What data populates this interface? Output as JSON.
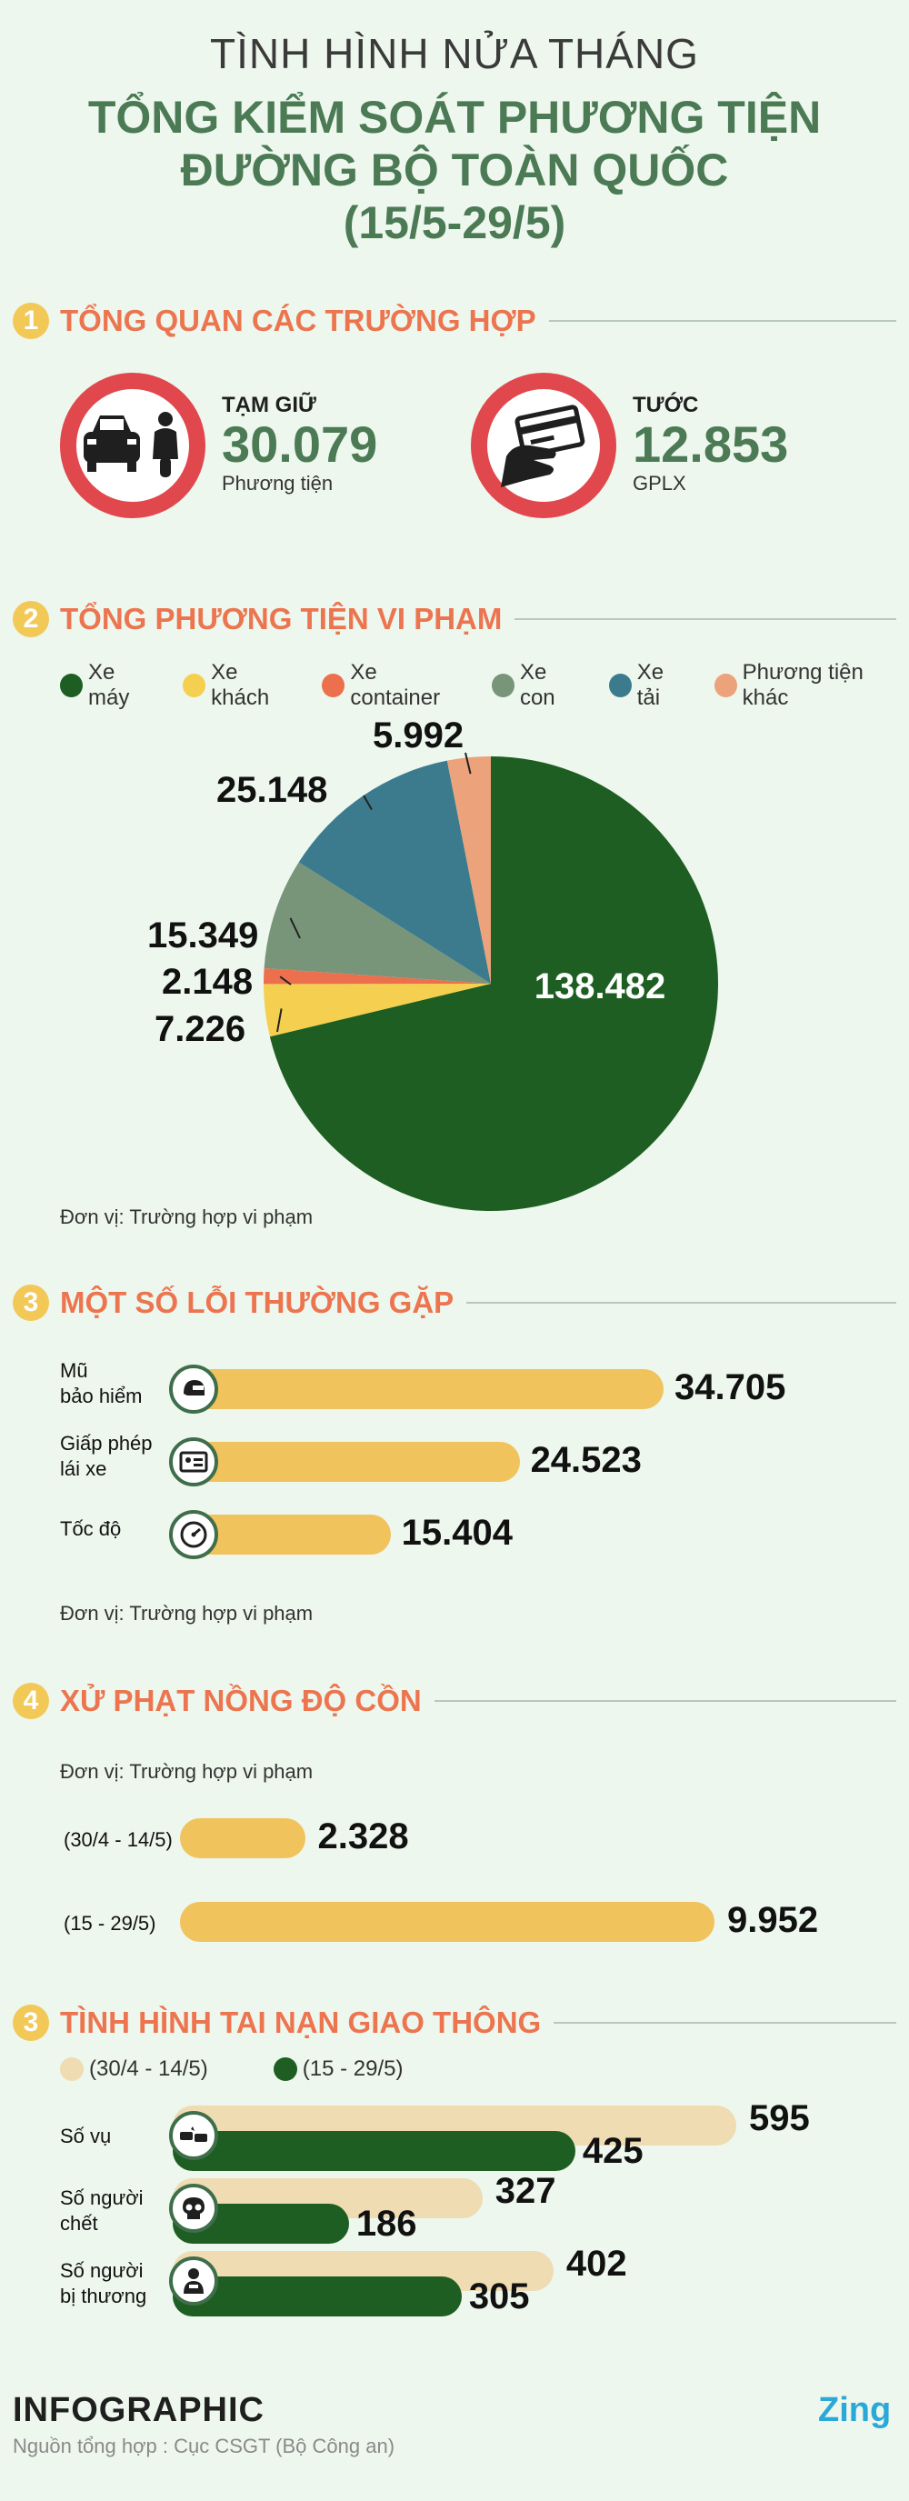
{
  "header": {
    "top_title": "TÌNH HÌNH NỬA THÁNG",
    "main_line1": "TỔNG KIỂM SOÁT PHƯƠNG TIỆN",
    "main_line2": "ĐƯỜNG BỘ TOÀN QUỐC",
    "main_line3": "(15/5-29/5)"
  },
  "section1": {
    "num": "1",
    "title": "TỔNG QUAN CÁC TRƯỜNG HỢP",
    "left": {
      "label": "TẠM GIỮ",
      "value": "30.079",
      "unit": "Phương tiện",
      "icon": "car-motorbike-icon"
    },
    "right": {
      "label": "TƯỚC",
      "value": "12.853",
      "unit": "GPLX",
      "icon": "hand-card-icon"
    }
  },
  "section2": {
    "num": "2",
    "title": "TỔNG PHƯƠNG TIỆN VI PHẠM",
    "unit_note": "Đơn vị: Trường hợp vi phạm"
  },
  "section3": {
    "num": "3",
    "title": "MỘT SỐ LỖI THƯỜNG GẶP",
    "unit_note": "Đơn vị: Trường hợp vi phạm"
  },
  "section4": {
    "num": "4",
    "title": "XỬ PHẠT NỒNG ĐỘ CỒN",
    "unit_note": "Đơn vị: Trường hợp vi phạm"
  },
  "section5": {
    "num": "3",
    "title": "TÌNH HÌNH TAI NẠN GIAO THÔNG",
    "legend_prev": "(30/4 - 14/5)",
    "legend_curr": "(15 - 29/5)"
  },
  "footer": {
    "brand": "INFOGRAPHIC",
    "source": "Nguồn tổng hợp : Cục CSGT (Bộ Công an)",
    "logo": "Zing"
  },
  "colors": {
    "bg": "#edf7ed",
    "green_dark": "#1e5e22",
    "yellow": "#f0c35c",
    "orange_title": "#ec7550",
    "red_ban": "#e0484e",
    "teal_green": "#4b7a55",
    "beige": "#efdcb2"
  },
  "chart_data": [
    {
      "type": "pie",
      "title": "TỔNG PHƯƠNG TIỆN VI PHẠM",
      "categories": [
        "Xe máy",
        "Xe khách",
        "Xe container",
        "Xe con",
        "Xe tải",
        "Phương tiện khác"
      ],
      "values": [
        138482,
        7226,
        2148,
        15349,
        25148,
        5992
      ],
      "labels": [
        "138.482",
        "7.226",
        "2.148",
        "15.349",
        "25.148",
        "5.992"
      ],
      "colors": [
        "#1e5e22",
        "#f5cf4f",
        "#ec6f4e",
        "#78957a",
        "#3c7b8e",
        "#eca27a"
      ],
      "legend_position": "top"
    },
    {
      "type": "bar",
      "title": "MỘT SỐ LỖI THƯỜNG GẶP",
      "orientation": "horizontal",
      "categories": [
        "Mũ bảo hiểm",
        "Giấp phép lái xe",
        "Tốc độ"
      ],
      "category_lines": [
        [
          "Mũ",
          "bảo hiểm"
        ],
        [
          "Giấp phép",
          "lái xe"
        ],
        [
          "Tốc độ"
        ]
      ],
      "icons": [
        "helmet-icon",
        "license-card-icon",
        "speedometer-icon"
      ],
      "values": [
        34705,
        24523,
        15404
      ],
      "labels": [
        "34.705",
        "24.523",
        "15.404"
      ]
    },
    {
      "type": "bar",
      "title": "XỬ PHẠT NỒNG ĐỘ CỒN",
      "orientation": "horizontal",
      "categories": [
        "(30/4 - 14/5)",
        "(15 - 29/5)"
      ],
      "values": [
        2328,
        9952
      ],
      "labels": [
        "2.328",
        "9.952"
      ]
    },
    {
      "type": "bar",
      "title": "TÌNH HÌNH TAI NẠN GIAO THÔNG",
      "orientation": "horizontal",
      "categories": [
        "Số vụ",
        "Số người chết",
        "Số người bị thương"
      ],
      "category_lines": [
        [
          "Số vụ"
        ],
        [
          "Số người",
          "chết"
        ],
        [
          "Số người",
          "bị thương"
        ]
      ],
      "icons": [
        "crash-cars-icon",
        "skull-icon",
        "injured-person-icon"
      ],
      "series": [
        {
          "name": "(30/4 - 14/5)",
          "values": [
            595,
            327,
            402
          ],
          "labels": [
            "595",
            "327",
            "402"
          ],
          "color": "#efdcb2"
        },
        {
          "name": "(15 - 29/5)",
          "values": [
            425,
            186,
            305
          ],
          "labels": [
            "425",
            "186",
            "305"
          ],
          "color": "#1e5e22"
        }
      ]
    }
  ]
}
